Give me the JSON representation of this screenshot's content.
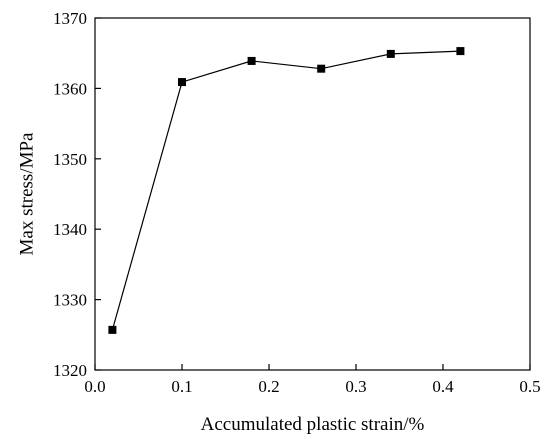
{
  "chart_data": {
    "type": "line",
    "xlabel": "Accumulated plastic strain/%",
    "ylabel": "Max stress/MPa",
    "xlim": [
      0.0,
      0.5
    ],
    "ylim": [
      1320,
      1370
    ],
    "x_ticks": [
      0.0,
      0.1,
      0.2,
      0.3,
      0.4,
      0.5
    ],
    "x_tick_labels": [
      "0.0",
      "0.1",
      "0.2",
      "0.3",
      "0.4",
      "0.5"
    ],
    "y_ticks": [
      1320,
      1330,
      1340,
      1350,
      1360,
      1370
    ],
    "y_tick_labels": [
      "1320",
      "1330",
      "1340",
      "1350",
      "1360",
      "1370"
    ],
    "grid": false,
    "marker": "square",
    "series": [
      {
        "x": [
          0.02,
          0.1,
          0.18,
          0.26,
          0.34,
          0.42
        ],
        "y": [
          1325.7,
          1360.9,
          1363.9,
          1362.8,
          1364.9,
          1365.3
        ]
      }
    ]
  }
}
